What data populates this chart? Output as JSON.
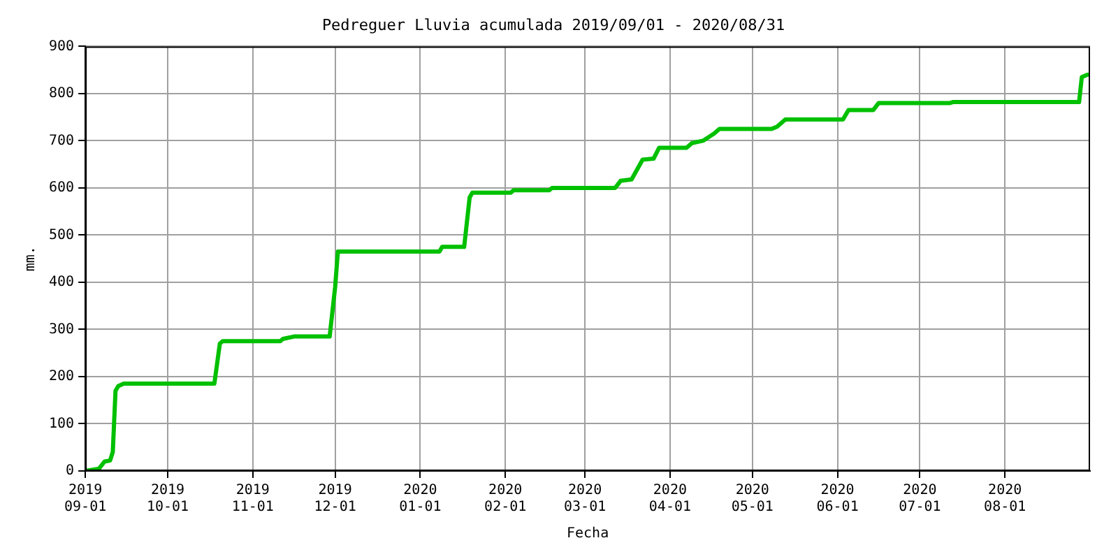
{
  "chart_data": {
    "type": "line",
    "title": "Pedreguer Lluvia acumulada 2019/09/01 - 2020/08/31",
    "xlabel": "Fecha",
    "ylabel": "mm.",
    "x": [
      "2019-09-01",
      "2019-09-06",
      "2019-09-08",
      "2019-09-10",
      "2019-09-11",
      "2019-09-12",
      "2019-09-13",
      "2019-09-15",
      "2019-10-18",
      "2019-10-20",
      "2019-10-21",
      "2019-11-11",
      "2019-11-12",
      "2019-11-16",
      "2019-11-29",
      "2019-12-01",
      "2019-12-02",
      "2020-01-08",
      "2020-01-09",
      "2020-01-17",
      "2020-01-19",
      "2020-01-20",
      "2020-02-03",
      "2020-02-04",
      "2020-02-17",
      "2020-02-18",
      "2020-03-12",
      "2020-03-14",
      "2020-03-18",
      "2020-03-22",
      "2020-03-26",
      "2020-03-28",
      "2020-04-07",
      "2020-04-09",
      "2020-04-13",
      "2020-04-17",
      "2020-04-19",
      "2020-05-08",
      "2020-05-10",
      "2020-05-13",
      "2020-06-03",
      "2020-06-05",
      "2020-06-14",
      "2020-06-16",
      "2020-07-12",
      "2020-07-13",
      "2020-08-28",
      "2020-08-29",
      "2020-08-31"
    ],
    "series": [
      {
        "color": "#00c000",
        "values": [
          0,
          5,
          20,
          22,
          40,
          170,
          180,
          185,
          185,
          270,
          275,
          275,
          280,
          285,
          285,
          390,
          465,
          465,
          475,
          475,
          580,
          590,
          590,
          595,
          595,
          600,
          600,
          615,
          618,
          660,
          662,
          685,
          685,
          695,
          700,
          715,
          725,
          725,
          730,
          745,
          745,
          765,
          765,
          780,
          780,
          782,
          782,
          835,
          840
        ]
      }
    ],
    "xlim": [
      "2019-09-01",
      "2020-09-01"
    ],
    "xticks": [
      {
        "value": "2019-09-01",
        "label": "2019\n09-01"
      },
      {
        "value": "2019-10-01",
        "label": "2019\n10-01"
      },
      {
        "value": "2019-11-01",
        "label": "2019\n11-01"
      },
      {
        "value": "2019-12-01",
        "label": "2019\n12-01"
      },
      {
        "value": "2020-01-01",
        "label": "2020\n01-01"
      },
      {
        "value": "2020-02-01",
        "label": "2020\n02-01"
      },
      {
        "value": "2020-03-01",
        "label": "2020\n03-01"
      },
      {
        "value": "2020-04-01",
        "label": "2020\n04-01"
      },
      {
        "value": "2020-05-01",
        "label": "2020\n05-01"
      },
      {
        "value": "2020-06-01",
        "label": "2020\n06-01"
      },
      {
        "value": "2020-07-01",
        "label": "2020\n07-01"
      },
      {
        "value": "2020-08-01",
        "label": "2020\n08-01"
      }
    ],
    "ylim": [
      0,
      900
    ],
    "yticks": [
      0,
      100,
      200,
      300,
      400,
      500,
      600,
      700,
      800,
      900
    ],
    "grid": true,
    "marker": "none",
    "line_style": "solid"
  }
}
